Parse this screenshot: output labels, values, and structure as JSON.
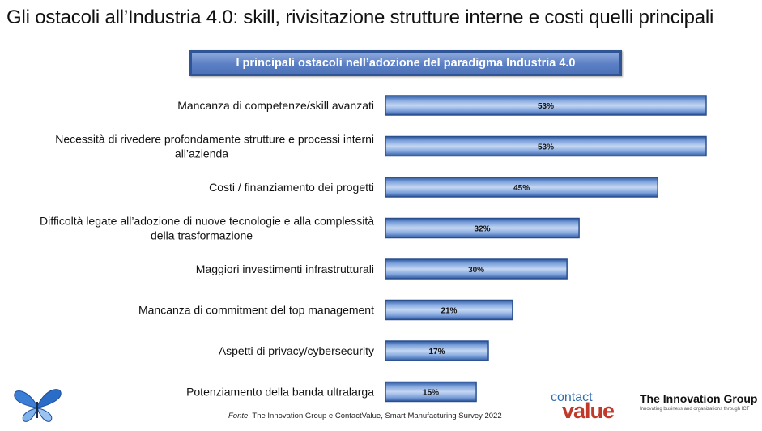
{
  "page_title": "Gli ostacoli all’Industria 4.0: skill, rivisitazione strutture interne e costi quelli principali",
  "chart_data": {
    "type": "bar",
    "orientation": "horizontal",
    "title": "I principali ostacoli nell’adozione del paradigma Industria 4.0",
    "categories": [
      [
        "Mancanza di competenze/skill avanzati"
      ],
      [
        "Necessità di rivedere profondamente strutture e processi interni",
        "all’azienda"
      ],
      [
        "Costi / finanziamento dei progetti"
      ],
      [
        "Difficoltà legate all’adozione di nuove tecnologie e alla complessità",
        "della trasformazione"
      ],
      [
        "Maggiori investimenti infrastrutturali"
      ],
      [
        "Mancanza di commitment del top management"
      ],
      [
        "Aspetti di privacy/cybersecurity"
      ],
      [
        "Potenziamento della banda ultralarga"
      ]
    ],
    "values": [
      53,
      53,
      45,
      32,
      30,
      21,
      17,
      15
    ],
    "value_labels": [
      "53%",
      "53%",
      "45%",
      "32%",
      "30%",
      "21%",
      "17%",
      "15%"
    ],
    "unit": "%",
    "xlim": [
      0,
      53
    ],
    "grid": false,
    "legend": "none",
    "bar_color": "#5b86c9"
  },
  "source": {
    "prefix": "Fonte",
    "text": ": The Innovation Group e ContactValue, Smart Manufacturing Survey 2022"
  },
  "logos": {
    "contact_line1": "contact",
    "contact_line2": "value",
    "tig_name": "The Innovation Group",
    "tig_tagline": "Innovating business and organizations through ICT"
  }
}
